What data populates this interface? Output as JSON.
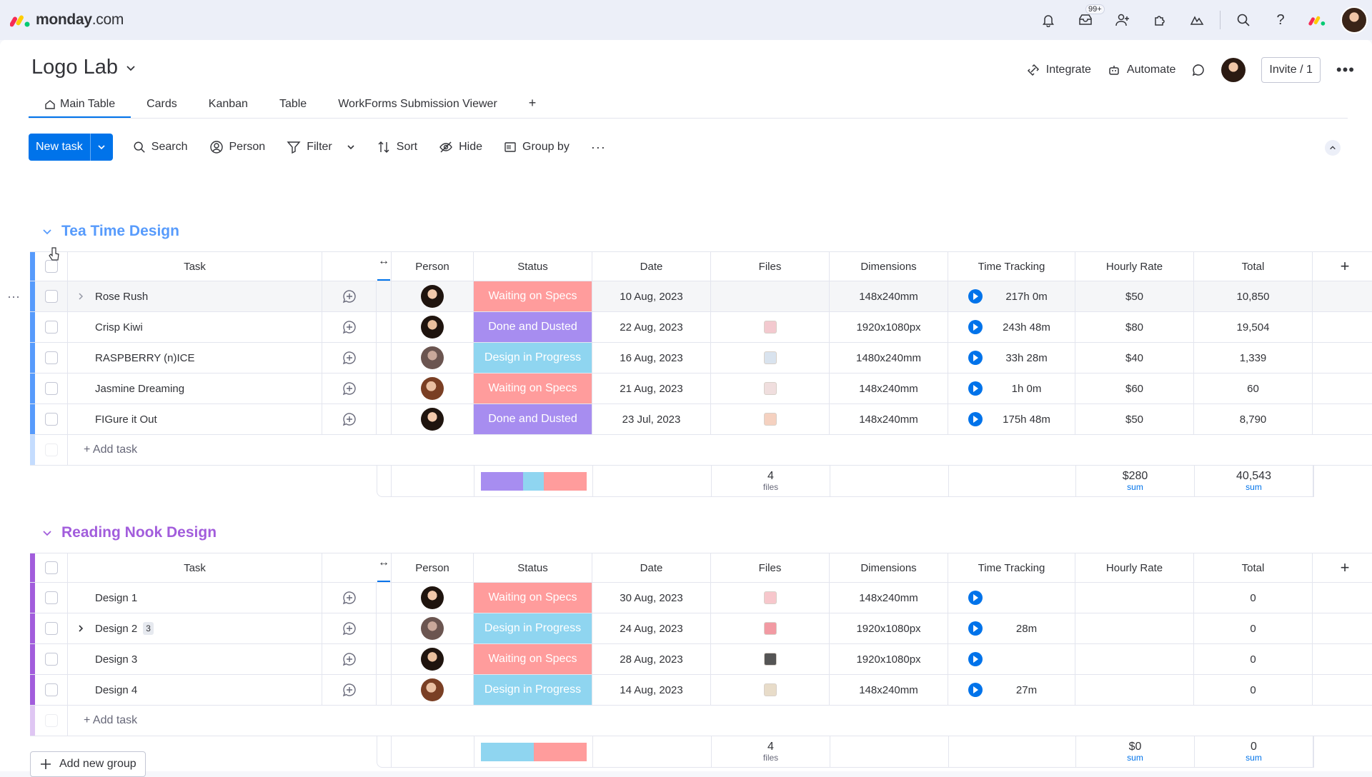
{
  "app": {
    "logo_main": "monday",
    "logo_suffix": ".com",
    "notifications_badge": "99+"
  },
  "board": {
    "title": "Logo Lab"
  },
  "title_actions": {
    "integrate": "Integrate",
    "automate": "Automate",
    "invite": "Invite / 1"
  },
  "tabs": [
    {
      "label": "Main Table"
    },
    {
      "label": "Cards"
    },
    {
      "label": "Kanban"
    },
    {
      "label": "Table"
    },
    {
      "label": "WorkForms Submission Viewer"
    },
    {
      "label": "+"
    }
  ],
  "toolbar": {
    "new_task": "New task",
    "search": "Search",
    "person": "Person",
    "filter": "Filter",
    "sort": "Sort",
    "hide": "Hide",
    "group_by": "Group by"
  },
  "columns": {
    "task": "Task",
    "person": "Person",
    "status": "Status",
    "date": "Date",
    "files": "Files",
    "dimensions": "Dimensions",
    "time_tracking": "Time Tracking",
    "hourly_rate": "Hourly Rate",
    "total": "Total"
  },
  "status_colors": {
    "Waiting on Specs": "#ff9c9c",
    "Done and Dusted": "#a78df0",
    "Design in Progress": "#8fd5f0"
  },
  "add_task": "+ Add task",
  "groups": [
    {
      "name": "Tea Time Design",
      "color": "#579bfc",
      "rows": [
        {
          "task": "Rose Rush",
          "status": "Waiting on Specs",
          "date": "10 Aug, 2023",
          "has_file": false,
          "dimensions": "148x240mm",
          "time": "217h 0m",
          "rate": "$50",
          "total": "10,850"
        },
        {
          "task": "Crisp Kiwi",
          "status": "Done and Dusted",
          "date": "22 Aug, 2023",
          "has_file": true,
          "dimensions": "1920x1080px",
          "time": "243h 48m",
          "rate": "$80",
          "total": "19,504"
        },
        {
          "task": "RASPBERRY (n)ICE",
          "status": "Design in Progress",
          "date": "16 Aug, 2023",
          "has_file": true,
          "dimensions": "1480x240mm",
          "time": "33h 28m",
          "rate": "$40",
          "total": "1,339"
        },
        {
          "task": "Jasmine Dreaming",
          "status": "Waiting on Specs",
          "date": "21 Aug, 2023",
          "has_file": true,
          "dimensions": "148x240mm",
          "time": "1h 0m",
          "rate": "$60",
          "total": "60"
        },
        {
          "task": "FIGure it Out",
          "status": "Done and Dusted",
          "date": "23 Jul, 2023",
          "has_file": true,
          "dimensions": "148x240mm",
          "time": "175h 48m",
          "rate": "$50",
          "total": "8,790"
        }
      ],
      "summary": {
        "status_fractions": [
          0.4,
          0.2,
          0.4
        ],
        "status_order": [
          "Done and Dusted",
          "Design in Progress",
          "Waiting on Specs"
        ],
        "files_count": "4",
        "files_label": "files",
        "rate_sum": "$280",
        "total_sum": "40,543",
        "sum_label": "sum"
      }
    },
    {
      "name": "Reading Nook Design",
      "color": "#a25ddc",
      "rows": [
        {
          "task": "Design 1",
          "status": "Waiting on Specs",
          "date": "30 Aug, 2023",
          "has_file": true,
          "dimensions": "148x240mm",
          "time": "",
          "rate": "",
          "total": "0"
        },
        {
          "task": "Design 2",
          "subitems": "3",
          "status": "Design in Progress",
          "date": "24 Aug, 2023",
          "has_file": true,
          "dimensions": "1920x1080px",
          "time": "28m",
          "rate": "",
          "total": "0"
        },
        {
          "task": "Design 3",
          "status": "Waiting on Specs",
          "date": "28 Aug, 2023",
          "has_file": true,
          "dimensions": "1920x1080px",
          "time": "",
          "rate": "",
          "total": "0"
        },
        {
          "task": "Design 4",
          "status": "Design in Progress",
          "date": "14 Aug, 2023",
          "has_file": true,
          "dimensions": "148x240mm",
          "time": "27m",
          "rate": "",
          "total": "0"
        }
      ],
      "summary": {
        "status_fractions": [
          0.5,
          0.5
        ],
        "status_order": [
          "Design in Progress",
          "Waiting on Specs"
        ],
        "files_count": "4",
        "files_label": "files",
        "rate_sum": "$0",
        "total_sum": "0",
        "sum_label": "sum"
      }
    }
  ],
  "add_group": "Add new group"
}
